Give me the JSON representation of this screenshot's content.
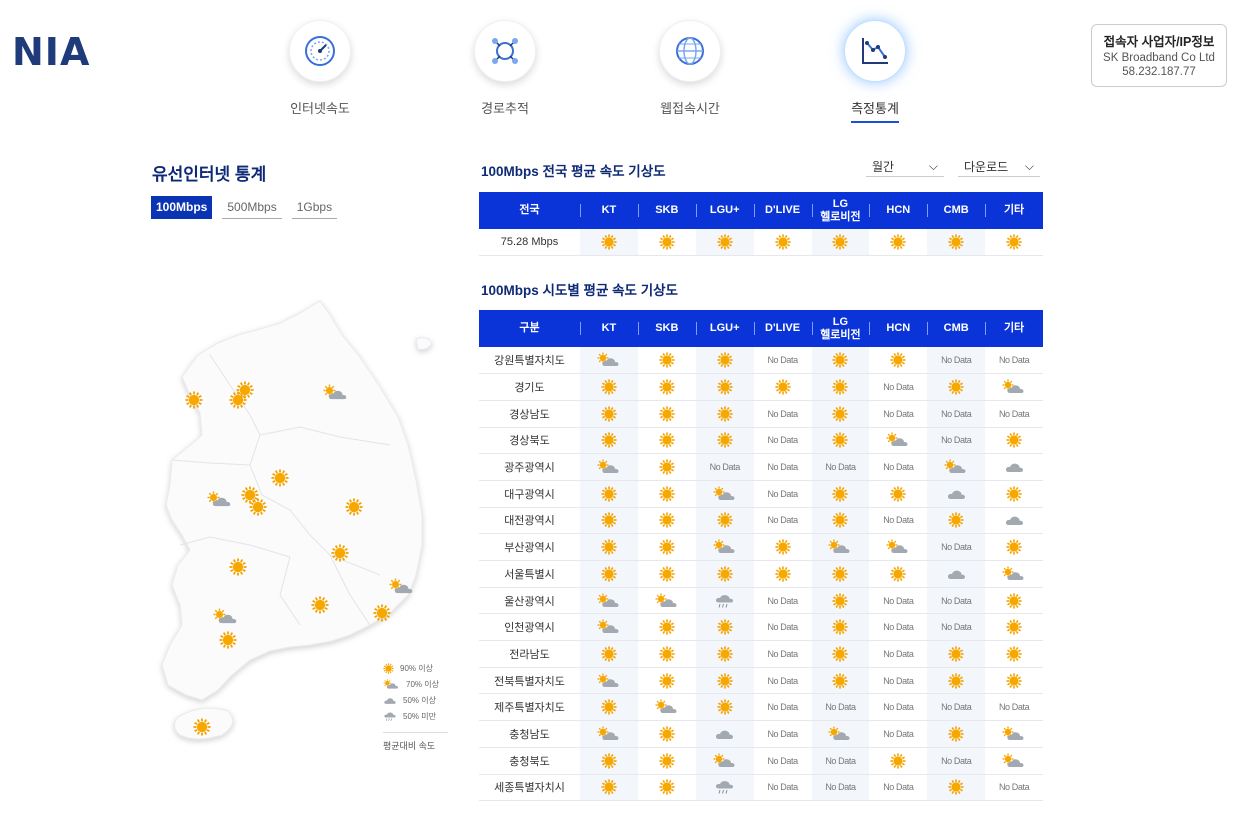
{
  "logo": "NIA",
  "nav": [
    {
      "label": "인터넷속도",
      "icon": "speedometer-icon",
      "active": false
    },
    {
      "label": "경로추적",
      "icon": "route-trace-icon",
      "active": false
    },
    {
      "label": "웹접속시간",
      "icon": "globe-icon",
      "active": false
    },
    {
      "label": "측정통계",
      "icon": "statistics-chart-icon",
      "active": true
    }
  ],
  "connection_info": {
    "title": "접속자 사업자/IP정보",
    "isp": "SK Broadband Co Ltd",
    "ip": "58.232.187.77"
  },
  "left_panel": {
    "title": "유선인터넷 통계",
    "speed_tabs": [
      "100Mbps",
      "500Mbps",
      "1Gbps"
    ],
    "active_tab": "100Mbps",
    "legend": [
      {
        "label": "90% 이상",
        "icon": "sun"
      },
      {
        "label": "70% 이상",
        "icon": "suncloud"
      },
      {
        "label": "50% 이상",
        "icon": "cloud"
      },
      {
        "label": "50% 미만",
        "icon": "rain"
      }
    ],
    "legend_footer": "평균대비 속도"
  },
  "national": {
    "title": "100Mbps 전국 평균 속도 기상도",
    "period_select": "월간",
    "download_select": "다운로드",
    "headers": [
      "전국",
      "KT",
      "SKB",
      "LGU+",
      "D'LIVE",
      "LG\n헬로비전",
      "HCN",
      "CMB",
      "기타"
    ],
    "row": {
      "value": "75.28 Mbps",
      "cells": [
        "sun",
        "sun",
        "sun",
        "sun",
        "sun",
        "sun",
        "sun",
        "sun"
      ]
    }
  },
  "regional": {
    "title": "100Mbps 시도별 평균 속도 기상도",
    "headers": [
      "구분",
      "KT",
      "SKB",
      "LGU+",
      "D'LIVE",
      "LG\n헬로비전",
      "HCN",
      "CMB",
      "기타"
    ],
    "nodata_label": "No Data",
    "rows": [
      {
        "region": "강원특별자치도",
        "cells": [
          "suncloud",
          "sun",
          "sun",
          "nodata",
          "sun",
          "sun",
          "nodata",
          "nodata"
        ]
      },
      {
        "region": "경기도",
        "cells": [
          "sun",
          "sun",
          "sun",
          "sun",
          "sun",
          "nodata",
          "sun",
          "suncloud"
        ]
      },
      {
        "region": "경상남도",
        "cells": [
          "sun",
          "sun",
          "sun",
          "nodata",
          "sun",
          "nodata",
          "nodata",
          "nodata"
        ]
      },
      {
        "region": "경상북도",
        "cells": [
          "sun",
          "sun",
          "sun",
          "nodata",
          "sun",
          "suncloud",
          "nodata",
          "sun"
        ]
      },
      {
        "region": "광주광역시",
        "cells": [
          "suncloud",
          "sun",
          "nodata",
          "nodata",
          "nodata",
          "nodata",
          "suncloud",
          "cloud"
        ]
      },
      {
        "region": "대구광역시",
        "cells": [
          "sun",
          "sun",
          "suncloud",
          "nodata",
          "sun",
          "sun",
          "cloud",
          "sun"
        ]
      },
      {
        "region": "대전광역시",
        "cells": [
          "sun",
          "sun",
          "sun",
          "nodata",
          "sun",
          "nodata",
          "sun",
          "cloud"
        ]
      },
      {
        "region": "부산광역시",
        "cells": [
          "sun",
          "sun",
          "suncloud",
          "sun",
          "suncloud",
          "suncloud",
          "nodata",
          "sun"
        ]
      },
      {
        "region": "서울특별시",
        "cells": [
          "sun",
          "sun",
          "sun",
          "sun",
          "sun",
          "sun",
          "cloud",
          "suncloud"
        ]
      },
      {
        "region": "울산광역시",
        "cells": [
          "suncloud",
          "suncloud",
          "rain",
          "nodata",
          "sun",
          "nodata",
          "nodata",
          "sun"
        ]
      },
      {
        "region": "인천광역시",
        "cells": [
          "suncloud",
          "sun",
          "sun",
          "nodata",
          "sun",
          "nodata",
          "nodata",
          "sun"
        ]
      },
      {
        "region": "전라남도",
        "cells": [
          "sun",
          "sun",
          "sun",
          "nodata",
          "sun",
          "nodata",
          "sun",
          "sun"
        ]
      },
      {
        "region": "전북특별자치도",
        "cells": [
          "suncloud",
          "sun",
          "sun",
          "nodata",
          "sun",
          "nodata",
          "sun",
          "sun"
        ]
      },
      {
        "region": "제주특별자치도",
        "cells": [
          "sun",
          "suncloud",
          "sun",
          "nodata",
          "nodata",
          "nodata",
          "nodata",
          "nodata"
        ]
      },
      {
        "region": "충청남도",
        "cells": [
          "suncloud",
          "sun",
          "cloud",
          "nodata",
          "suncloud",
          "nodata",
          "sun",
          "suncloud"
        ]
      },
      {
        "region": "충청북도",
        "cells": [
          "sun",
          "sun",
          "suncloud",
          "nodata",
          "nodata",
          "sun",
          "nodata",
          "suncloud"
        ]
      },
      {
        "region": "세종특별자치시",
        "cells": [
          "sun",
          "sun",
          "rain",
          "nodata",
          "nodata",
          "nodata",
          "sun",
          "nodata"
        ]
      }
    ]
  },
  "map_markers": [
    {
      "region": "경기도",
      "icon": "sun"
    },
    {
      "region": "서울특별시",
      "icon": "sun"
    },
    {
      "region": "인천광역시",
      "icon": "sun"
    },
    {
      "region": "강원특별자치도",
      "icon": "suncloud"
    },
    {
      "region": "충청남도",
      "icon": "suncloud"
    },
    {
      "region": "세종특별자치시",
      "icon": "sun"
    },
    {
      "region": "충청북도",
      "icon": "sun"
    },
    {
      "region": "대전광역시",
      "icon": "sun"
    },
    {
      "region": "경상북도",
      "icon": "sun"
    },
    {
      "region": "대구광역시",
      "icon": "sun"
    },
    {
      "region": "전북특별자치도",
      "icon": "sun"
    },
    {
      "region": "광주광역시",
      "icon": "suncloud"
    },
    {
      "region": "전라남도",
      "icon": "sun"
    },
    {
      "region": "경상남도",
      "icon": "sun"
    },
    {
      "region": "부산광역시",
      "icon": "sun"
    },
    {
      "region": "울산광역시",
      "icon": "suncloud"
    },
    {
      "region": "제주특별자치도",
      "icon": "sun"
    }
  ],
  "colors": {
    "brand_navy": "#1f3b7a",
    "table_header": "#0a34d8",
    "sun": "#f5a300",
    "cloud": "#9aa0a8",
    "active_tab": "#0a34b4"
  }
}
